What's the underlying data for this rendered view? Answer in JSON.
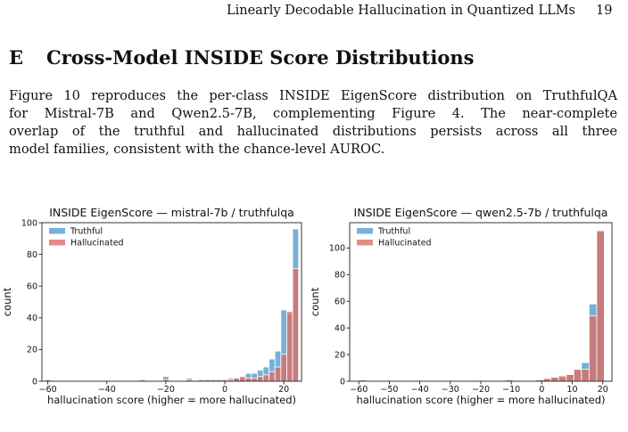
{
  "header": {
    "running_title": "Linearly Decodable Hallucination in Quantized LLMs",
    "page_number": "19"
  },
  "section": {
    "number": "E",
    "title": "Cross-Model INSIDE Score Distributions"
  },
  "paragraph": {
    "lines": [
      "Figure 10 reproduces the per-class INSIDE EigenScore distribution on TruthfulQA",
      "for Mistral-7B and Qwen2.5-7B, complementing Figure 4. The near-complete",
      "overlap of the truthful and hallucinated distributions persists across all three",
      "model families, consistent with the chance-level AUROC."
    ]
  },
  "colors": {
    "truthful": "#5fa2d0",
    "hallucinated": "#d96f66"
  },
  "chart_data": [
    {
      "type": "bar",
      "title": "INSIDE EigenScore — mistral-7b / truthfulqa",
      "xlabel": "hallucination score (higher = more hallucinated)",
      "ylabel": "count",
      "xlim": [
        -62,
        26
      ],
      "ylim": [
        0,
        100
      ],
      "xticks": [
        -60,
        -40,
        -20,
        0,
        20
      ],
      "yticks": [
        0,
        20,
        40,
        60,
        80,
        100
      ],
      "legend": "top-left",
      "bin_width": 2,
      "series": [
        {
          "name": "Truthful",
          "bins": [
            [
              -61,
              1
            ],
            [
              -21,
              3
            ],
            [
              -13,
              2
            ],
            [
              -7,
              1
            ],
            [
              -3,
              1
            ],
            [
              1,
              2
            ],
            [
              3,
              2
            ],
            [
              5,
              2
            ],
            [
              7,
              5
            ],
            [
              9,
              5
            ],
            [
              11,
              7
            ],
            [
              13,
              9
            ],
            [
              15,
              14
            ],
            [
              17,
              19
            ],
            [
              19,
              45
            ],
            [
              21,
              42
            ],
            [
              23,
              96
            ]
          ]
        },
        {
          "name": "Hallucinated",
          "bins": [
            [
              -29,
              1
            ],
            [
              -21,
              1
            ],
            [
              -13,
              1
            ],
            [
              -9,
              1
            ],
            [
              -5,
              1
            ],
            [
              -1,
              1
            ],
            [
              1,
              1
            ],
            [
              3,
              2
            ],
            [
              5,
              3
            ],
            [
              7,
              2
            ],
            [
              9,
              2
            ],
            [
              11,
              3
            ],
            [
              13,
              4
            ],
            [
              15,
              6
            ],
            [
              17,
              9
            ],
            [
              19,
              17
            ],
            [
              21,
              44
            ],
            [
              23,
              71
            ]
          ]
        }
      ]
    },
    {
      "type": "bar",
      "title": "INSIDE EigenScore — qwen2.5-7b / truthfulqa",
      "xlabel": "hallucination score (higher = more hallucinated)",
      "ylabel": "count",
      "xlim": [
        -63,
        23
      ],
      "ylim": [
        0,
        119
      ],
      "xticks": [
        -60,
        -50,
        -40,
        -30,
        -20,
        -10,
        0,
        10,
        20
      ],
      "yticks": [
        0,
        20,
        40,
        60,
        80,
        100
      ],
      "legend": "top-left",
      "bin_width": 2.5,
      "series": [
        {
          "name": "Truthful",
          "bins": [
            [
              -60,
              1
            ],
            [
              -12,
              1
            ],
            [
              -2,
              1
            ],
            [
              0.5,
              2
            ],
            [
              3,
              3
            ],
            [
              5.5,
              3
            ],
            [
              8,
              5
            ],
            [
              10.5,
              8
            ],
            [
              13,
              14
            ],
            [
              15.5,
              58
            ],
            [
              18,
              112
            ]
          ]
        },
        {
          "name": "Hallucinated",
          "bins": [
            [
              -12,
              1
            ],
            [
              -2,
              1
            ],
            [
              0.5,
              2
            ],
            [
              3,
              3
            ],
            [
              5.5,
              4
            ],
            [
              8,
              5
            ],
            [
              10.5,
              9
            ],
            [
              13,
              9
            ],
            [
              15.5,
              49
            ],
            [
              18,
              113
            ]
          ]
        }
      ]
    }
  ]
}
